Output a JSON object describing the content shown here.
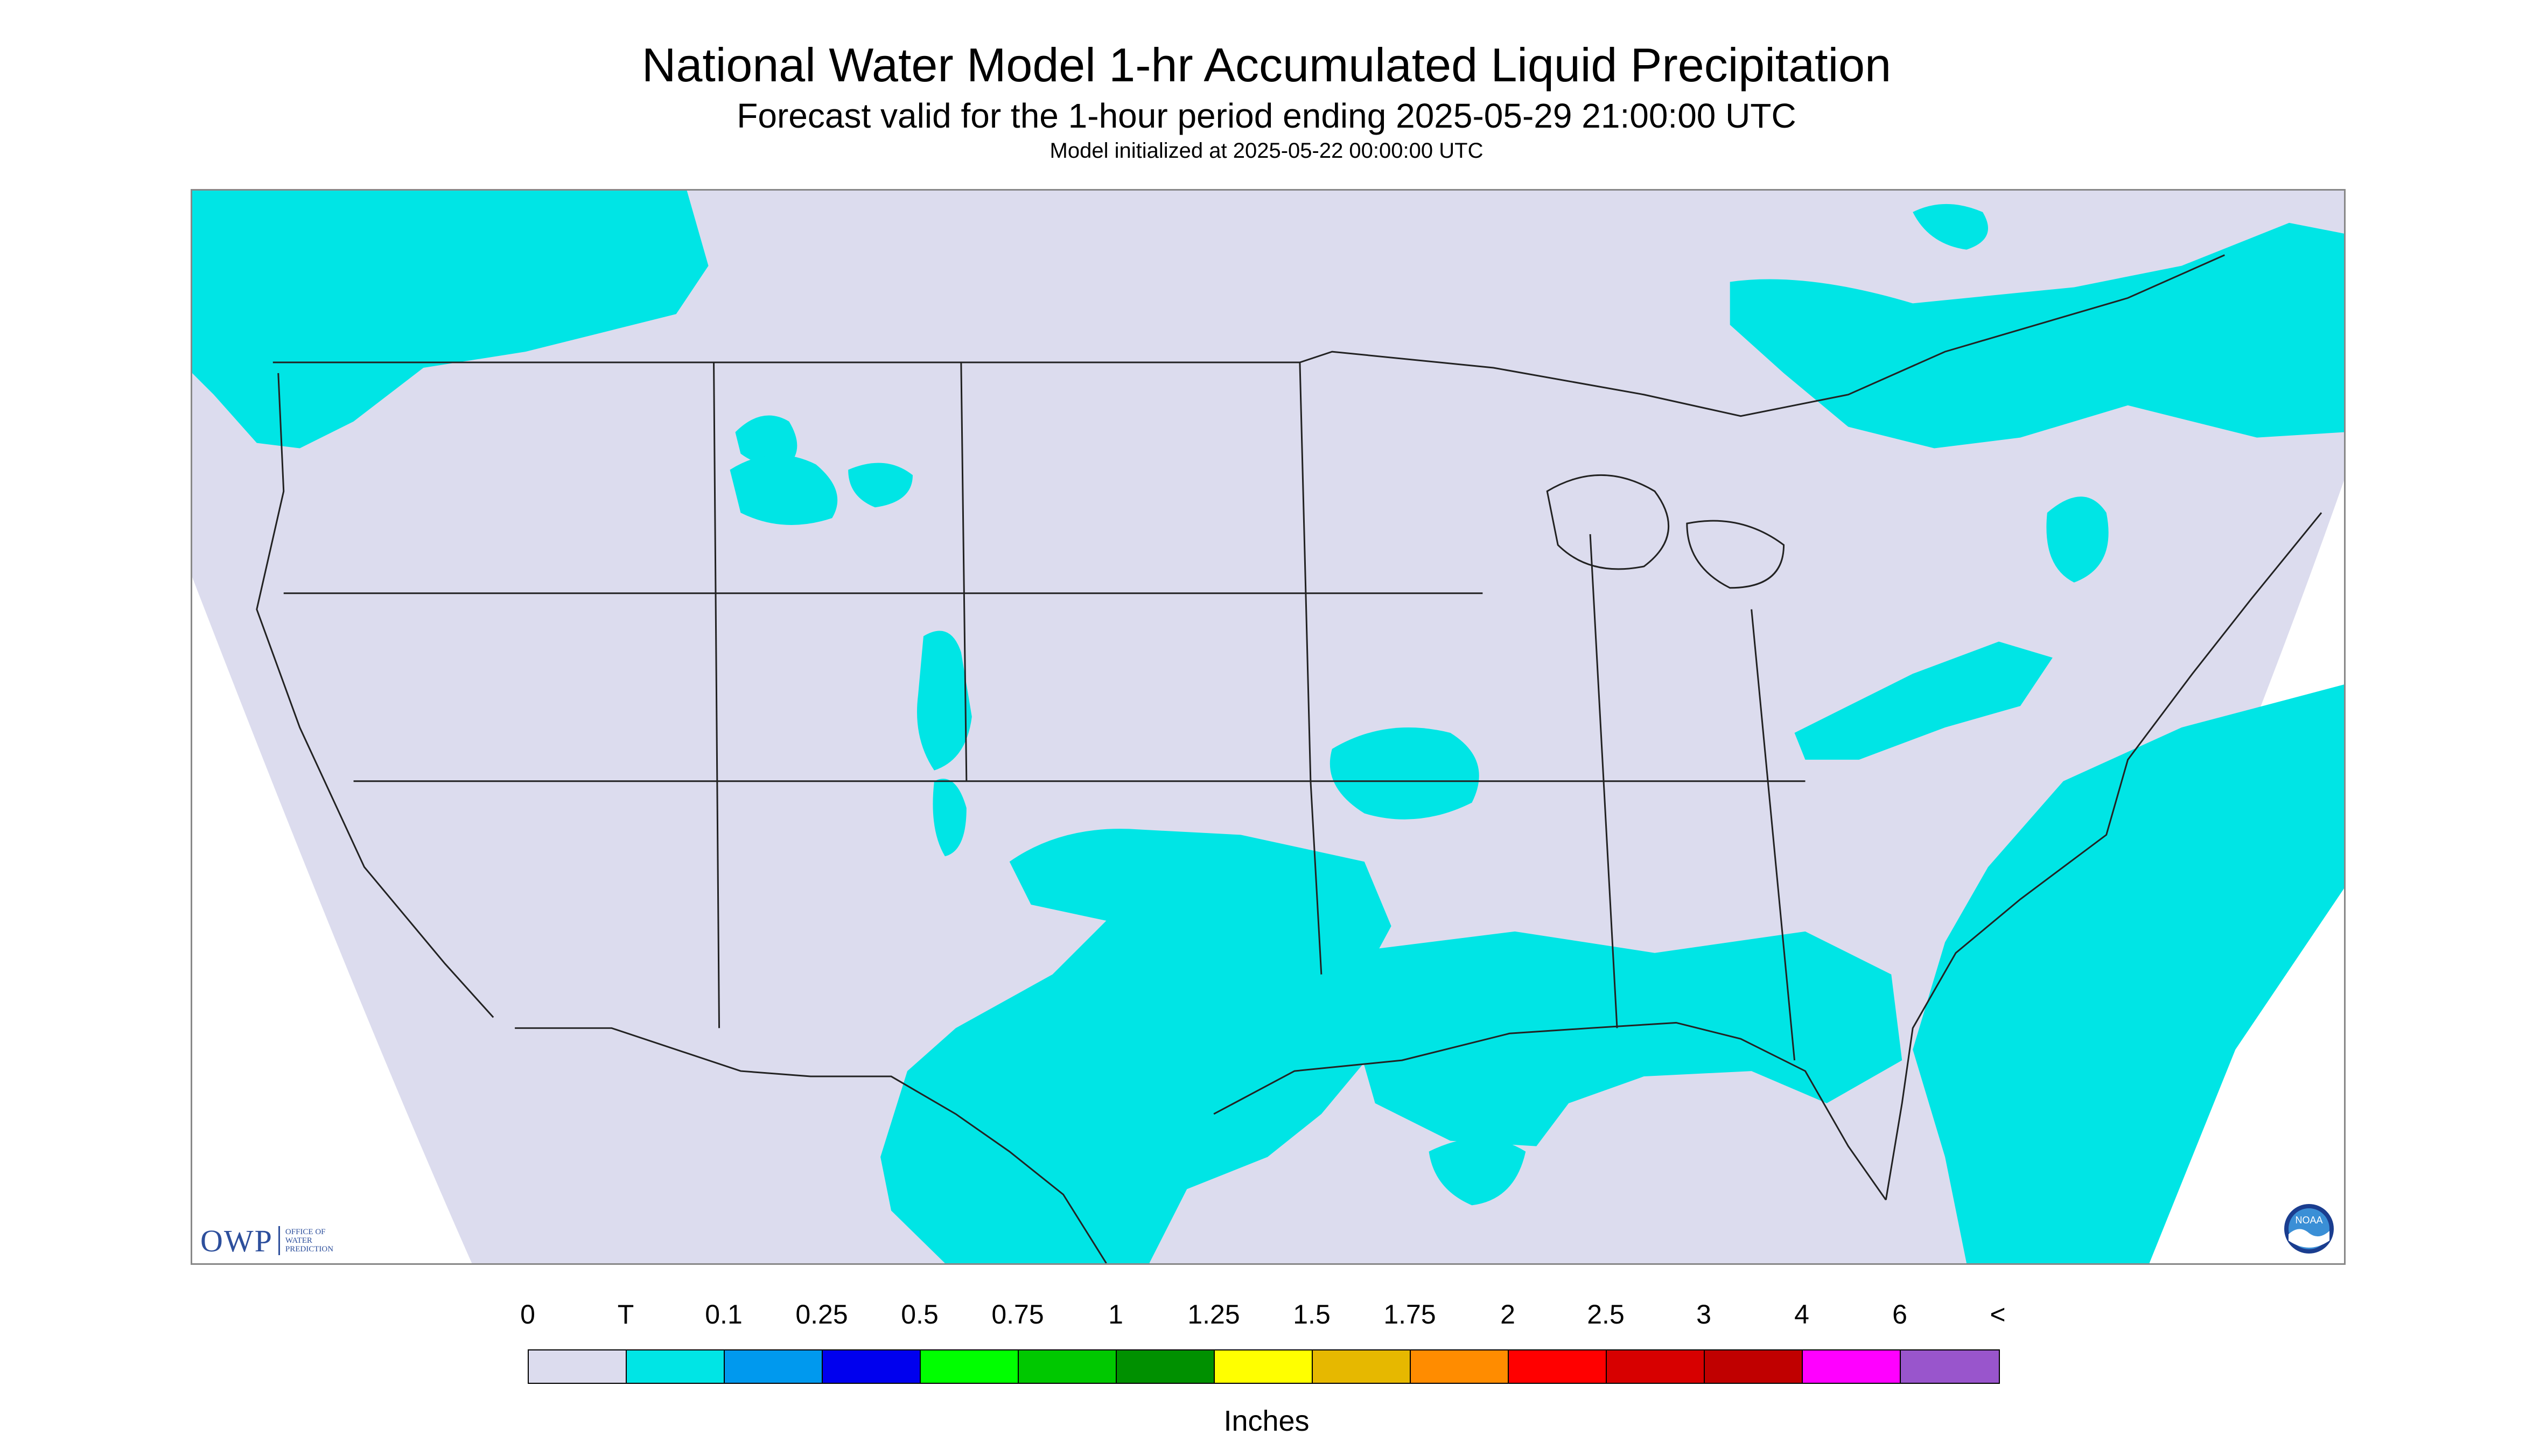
{
  "header": {
    "title": "National Water Model 1-hr Accumulated Liquid Precipitation",
    "subtitle": "Forecast valid for the 1-hour period ending 2025-05-29 21:00:00 UTC",
    "init_line": "Model initialized at 2025-05-22 00:00:00 UTC"
  },
  "logos": {
    "owp_text": "OWP",
    "owp_lines": [
      "OFFICE OF",
      "WATER",
      "PREDICTION"
    ],
    "noaa_text": "NOAA"
  },
  "legend": {
    "labels": [
      "0",
      "T",
      "0.1",
      "0.25",
      "0.5",
      "0.75",
      "1",
      "1.25",
      "1.5",
      "1.75",
      "2",
      "2.5",
      "3",
      "4",
      "6",
      "<"
    ],
    "colors": [
      "#dcdcee",
      "#00e5e5",
      "#0099ee",
      "#0000ee",
      "#00ff00",
      "#00c800",
      "#009000",
      "#ffff00",
      "#e6b800",
      "#ff8c00",
      "#ff0000",
      "#d70000",
      "#c00000",
      "#ff00ff",
      "#9955cc"
    ],
    "units": "Inches"
  },
  "map": {
    "background_color": "#ffffff",
    "no_precip_color": "#dcdcee",
    "trace_color": "#00e5e5",
    "border_color": "#222222"
  }
}
